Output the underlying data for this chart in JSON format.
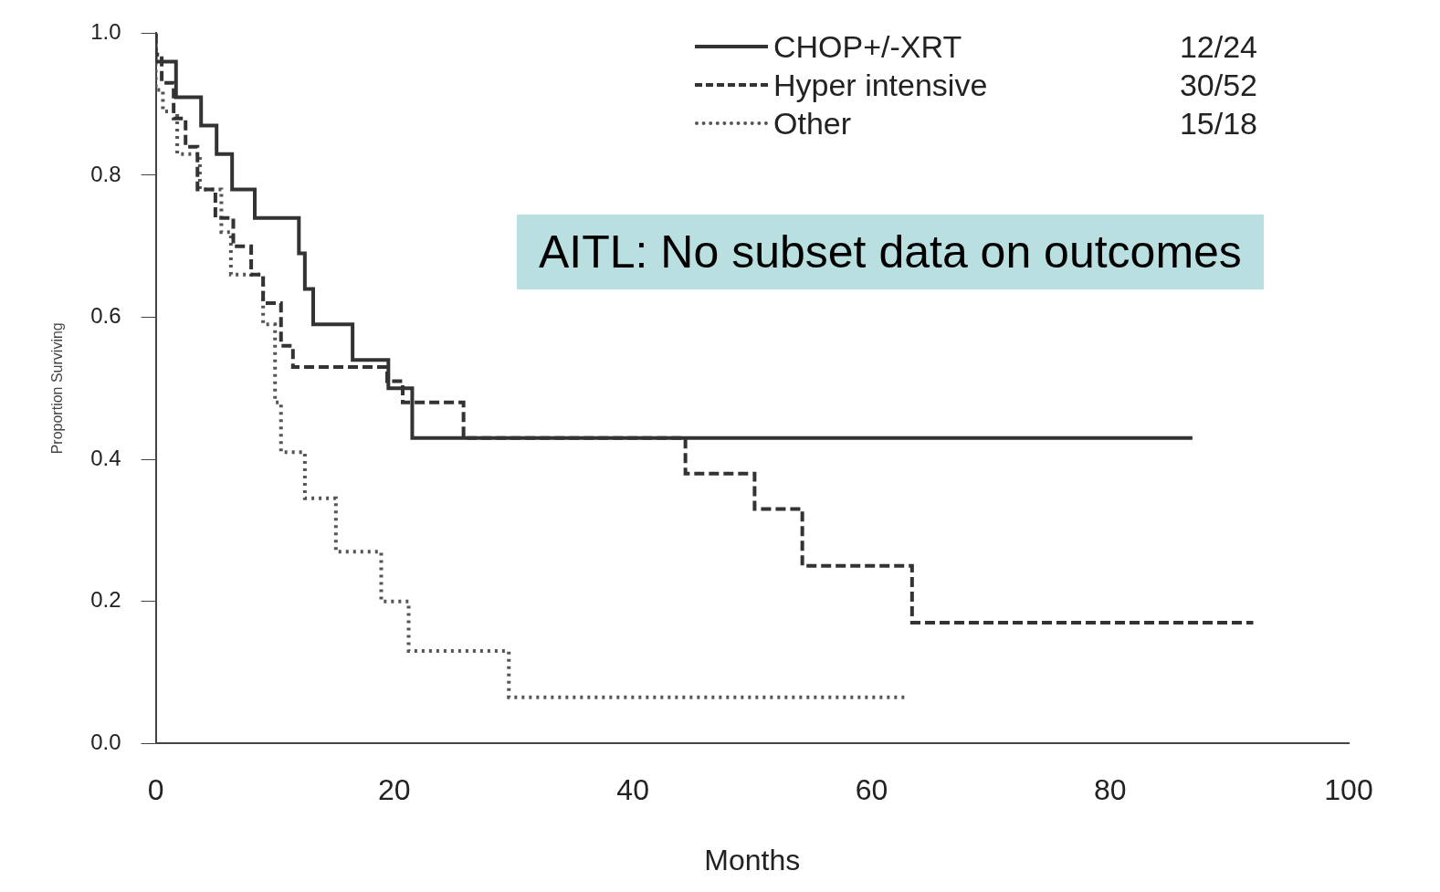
{
  "chart_data": {
    "type": "step",
    "xlabel": "Months",
    "ylabel": "Proportion Surviving",
    "xlim": [
      0,
      100
    ],
    "xticks": [
      0,
      20,
      40,
      60,
      80,
      100
    ],
    "ylim": [
      0,
      1
    ],
    "yticks": [
      {
        "value": 0,
        "label": "0.0"
      },
      {
        "value": 0.2,
        "label": "0.2"
      },
      {
        "value": 0.4,
        "label": "0.4"
      },
      {
        "value": 0.6,
        "label": "0.6"
      },
      {
        "value": 0.8,
        "label": "0.8"
      },
      {
        "value": 1,
        "label": "1.0"
      }
    ],
    "grid": false,
    "legend": "top right",
    "marker": "none",
    "annotations": [
      "AITL: No subset data on outcomes",
      "12/24",
      "30/52",
      "15/18"
    ],
    "series": [
      {
        "name": "CHOP+/-XRT",
        "color": "#333333",
        "line_style": "solid",
        "x": [
          0,
          1.7,
          3.8,
          5.1,
          6.4,
          8.3,
          12.0,
          12.5,
          13.2,
          16.5,
          19.5,
          21.5,
          28.2,
          86.9
        ],
        "values": [
          1.0,
          0.96,
          0.91,
          0.87,
          0.83,
          0.78,
          0.74,
          0.69,
          0.64,
          0.59,
          0.54,
          0.5,
          0.43,
          0.43
        ]
      },
      {
        "name": "Hyper intensive",
        "color": "#333333",
        "line_style": "dashed",
        "x": [
          0,
          0.5,
          1.5,
          2.5,
          3.5,
          5,
          6.5,
          8,
          9,
          10.5,
          11.5,
          19.4,
          20.7,
          25.8,
          44.4,
          50.2,
          54.2,
          63.4,
          66.3,
          92.0
        ],
        "values": [
          1.0,
          0.97,
          0.93,
          0.88,
          0.84,
          0.78,
          0.74,
          0.7,
          0.66,
          0.62,
          0.56,
          0.53,
          0.51,
          0.48,
          0.43,
          0.38,
          0.33,
          0.25,
          0.17,
          0.17
        ]
      },
      {
        "name": "Other",
        "color": "#555555",
        "line_style": "dotted",
        "x": [
          0,
          0.6,
          1.8,
          3.7,
          5.5,
          6.3,
          9.0,
          10.0,
          10.5,
          12.5,
          15.1,
          18.9,
          21.2,
          29.6,
          41.3,
          62.8
        ],
        "values": [
          1.0,
          0.92,
          0.89,
          0.83,
          0.78,
          0.72,
          0.66,
          0.59,
          0.48,
          0.41,
          0.345,
          0.27,
          0.2,
          0.13,
          0.065,
          0.065
        ]
      }
    ]
  }
}
